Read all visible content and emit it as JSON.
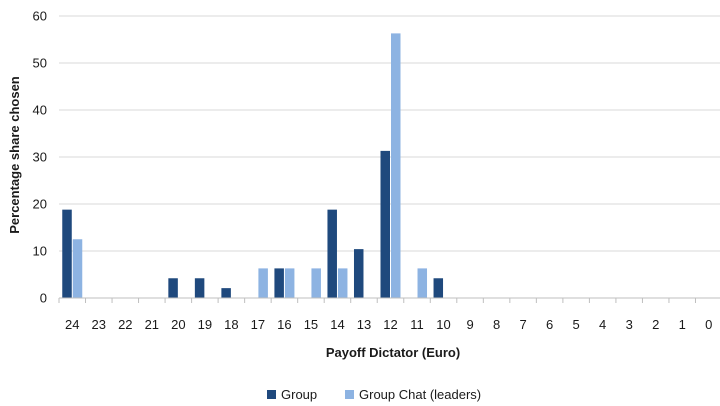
{
  "chart_data": {
    "type": "bar",
    "xlabel": "Payoff Dictator (Euro)",
    "ylabel": "Percentage share chosen",
    "ylim": [
      0,
      60
    ],
    "yticks": [
      "0",
      "10",
      "20",
      "30",
      "40",
      "50",
      "60"
    ],
    "grid": true,
    "legend_position": "bottom",
    "categories": [
      "24",
      "23",
      "22",
      "21",
      "20",
      "19",
      "18",
      "17",
      "16",
      "15",
      "14",
      "13",
      "12",
      "11",
      "10",
      "9",
      "8",
      "7",
      "6",
      "5",
      "4",
      "3",
      "2",
      "1",
      "0"
    ],
    "series": [
      {
        "name": "Group",
        "color": "#1f497d",
        "values": [
          18.8,
          0,
          0,
          0,
          4.2,
          4.2,
          2.1,
          0,
          6.3,
          0,
          18.8,
          10.4,
          31.3,
          0,
          4.2,
          0,
          0,
          0,
          0,
          0,
          0,
          0,
          0,
          0,
          0
        ]
      },
      {
        "name": "Group Chat (leaders)",
        "color": "#8db3e2",
        "values": [
          12.5,
          0,
          0,
          0,
          0,
          0,
          0,
          6.3,
          6.3,
          6.3,
          6.3,
          0,
          56.3,
          6.3,
          0,
          0,
          0,
          0,
          0,
          0,
          0,
          0,
          0,
          0,
          0
        ]
      }
    ]
  }
}
